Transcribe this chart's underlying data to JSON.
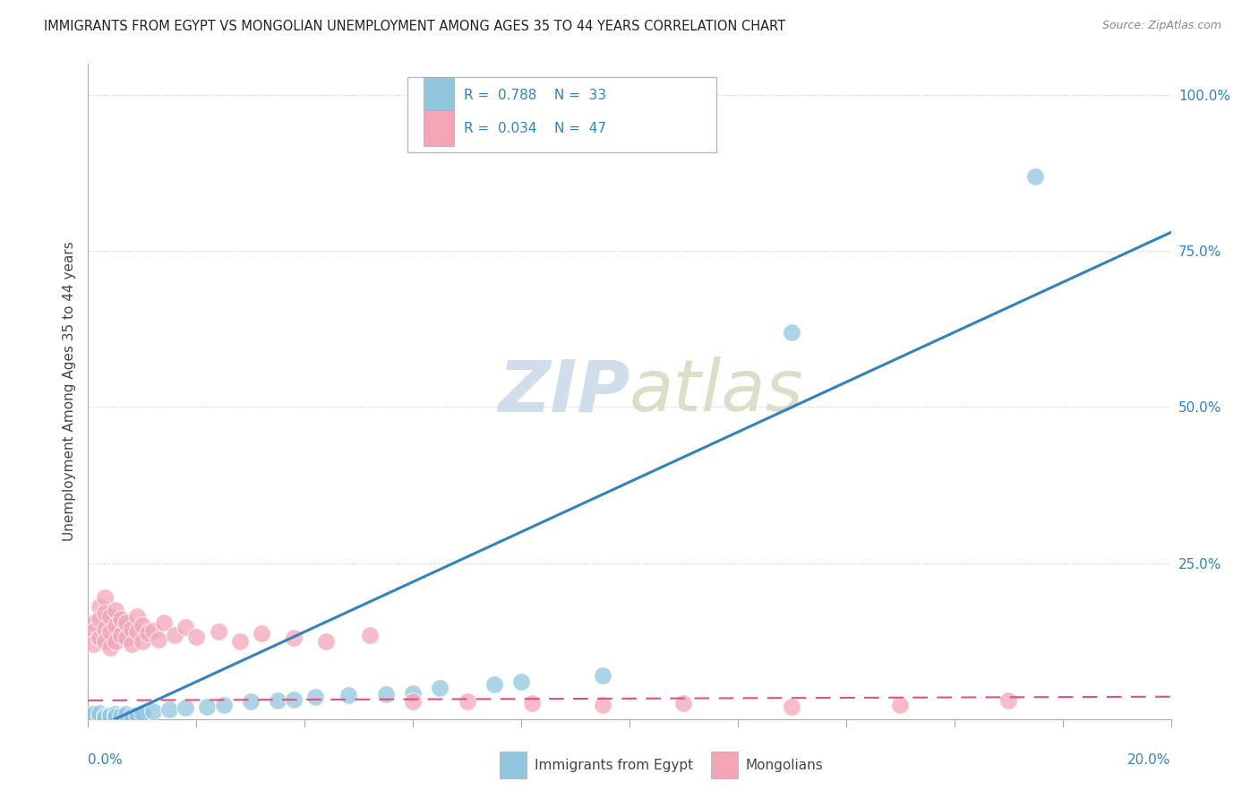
{
  "title": "IMMIGRANTS FROM EGYPT VS MONGOLIAN UNEMPLOYMENT AMONG AGES 35 TO 44 YEARS CORRELATION CHART",
  "source": "Source: ZipAtlas.com",
  "ylabel": "Unemployment Among Ages 35 to 44 years",
  "series1_label": "Immigrants from Egypt",
  "series1_R": "0.788",
  "series1_N": "33",
  "series1_color": "#92c5de",
  "series1_line_color": "#3182bd",
  "series2_label": "Mongolians",
  "series2_R": "0.034",
  "series2_N": "47",
  "series2_color": "#f4a6b8",
  "series2_line_color": "#e05080",
  "background_color": "#ffffff",
  "egypt_scatter_x": [
    0.001,
    0.001,
    0.002,
    0.002,
    0.003,
    0.003,
    0.004,
    0.004,
    0.005,
    0.005,
    0.006,
    0.007,
    0.008,
    0.009,
    0.01,
    0.012,
    0.015,
    0.018,
    0.022,
    0.025,
    0.03,
    0.035,
    0.038,
    0.042,
    0.048,
    0.055,
    0.06,
    0.065,
    0.075,
    0.08,
    0.095,
    0.13,
    0.175
  ],
  "egypt_scatter_y": [
    0.005,
    0.008,
    0.004,
    0.01,
    0.006,
    0.003,
    0.007,
    0.005,
    0.009,
    0.004,
    0.006,
    0.008,
    0.005,
    0.007,
    0.01,
    0.012,
    0.015,
    0.018,
    0.02,
    0.022,
    0.028,
    0.03,
    0.032,
    0.035,
    0.038,
    0.04,
    0.042,
    0.05,
    0.055,
    0.06,
    0.07,
    0.62,
    0.87
  ],
  "mongolia_scatter_x": [
    0.001,
    0.001,
    0.001,
    0.002,
    0.002,
    0.002,
    0.003,
    0.003,
    0.003,
    0.003,
    0.004,
    0.004,
    0.004,
    0.005,
    0.005,
    0.005,
    0.006,
    0.006,
    0.007,
    0.007,
    0.008,
    0.008,
    0.009,
    0.009,
    0.01,
    0.01,
    0.011,
    0.012,
    0.013,
    0.014,
    0.016,
    0.018,
    0.02,
    0.024,
    0.028,
    0.032,
    0.038,
    0.044,
    0.052,
    0.06,
    0.07,
    0.082,
    0.095,
    0.11,
    0.13,
    0.15,
    0.17
  ],
  "mongolia_scatter_y": [
    0.155,
    0.14,
    0.12,
    0.18,
    0.16,
    0.13,
    0.195,
    0.17,
    0.145,
    0.125,
    0.165,
    0.14,
    0.115,
    0.175,
    0.15,
    0.125,
    0.16,
    0.135,
    0.155,
    0.13,
    0.145,
    0.12,
    0.165,
    0.14,
    0.15,
    0.125,
    0.138,
    0.142,
    0.128,
    0.155,
    0.135,
    0.148,
    0.132,
    0.14,
    0.125,
    0.138,
    0.13,
    0.125,
    0.135,
    0.028,
    0.028,
    0.025,
    0.022,
    0.025,
    0.02,
    0.022,
    0.03
  ],
  "xlim": [
    0.0,
    0.2
  ],
  "ylim": [
    0.0,
    1.05
  ],
  "yticks": [
    0.25,
    0.5,
    0.75,
    1.0
  ],
  "ytick_labels": [
    "25.0%",
    "50.0%",
    "75.0%",
    "100.0%"
  ]
}
